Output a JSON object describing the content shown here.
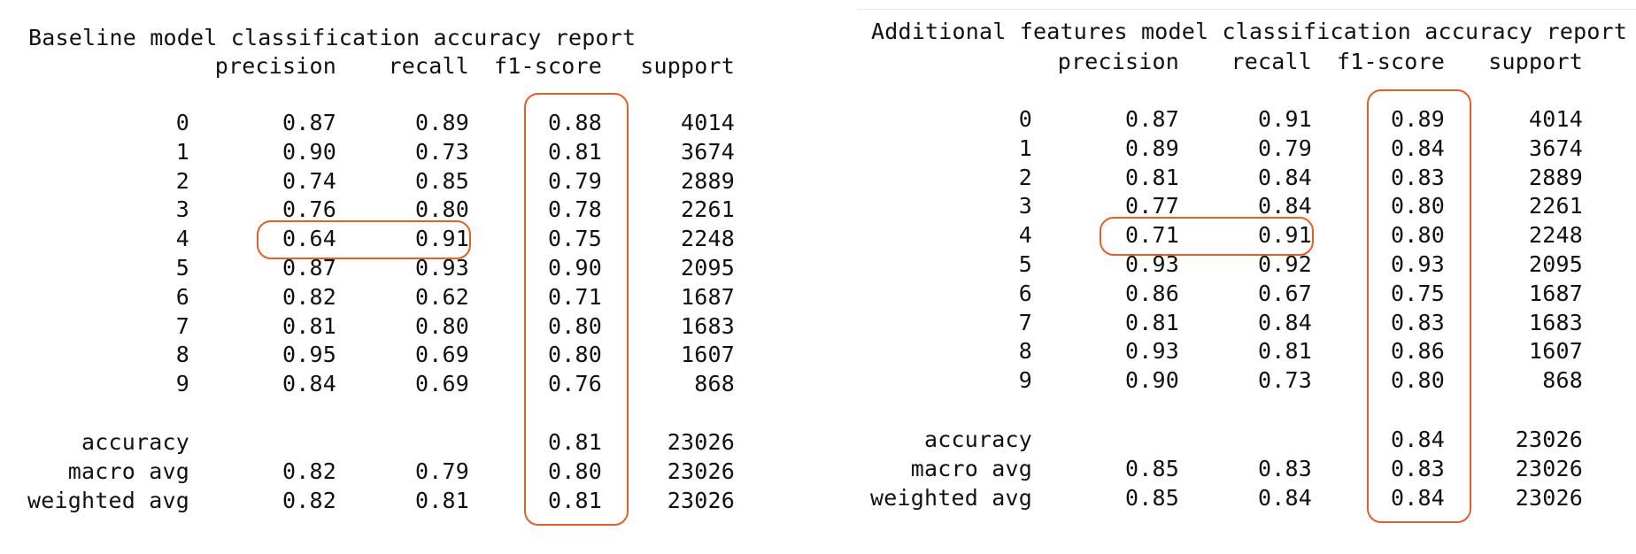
{
  "accent_color": "#e0602a",
  "reports": [
    {
      "title": "Baseline model classification accuracy report",
      "headers": [
        "precision",
        "recall",
        "f1-score",
        "support"
      ],
      "rows": [
        {
          "label": "0",
          "precision": "0.87",
          "recall": "0.89",
          "f1": "0.88",
          "support": "4014"
        },
        {
          "label": "1",
          "precision": "0.90",
          "recall": "0.73",
          "f1": "0.81",
          "support": "3674"
        },
        {
          "label": "2",
          "precision": "0.74",
          "recall": "0.85",
          "f1": "0.79",
          "support": "2889"
        },
        {
          "label": "3",
          "precision": "0.76",
          "recall": "0.80",
          "f1": "0.78",
          "support": "2261"
        },
        {
          "label": "4",
          "precision": "0.64",
          "recall": "0.91",
          "f1": "0.75",
          "support": "2248"
        },
        {
          "label": "5",
          "precision": "0.87",
          "recall": "0.93",
          "f1": "0.90",
          "support": "2095"
        },
        {
          "label": "6",
          "precision": "0.82",
          "recall": "0.62",
          "f1": "0.71",
          "support": "1687"
        },
        {
          "label": "7",
          "precision": "0.81",
          "recall": "0.80",
          "f1": "0.80",
          "support": "1683"
        },
        {
          "label": "8",
          "precision": "0.95",
          "recall": "0.69",
          "f1": "0.80",
          "support": "1607"
        },
        {
          "label": "9",
          "precision": "0.84",
          "recall": "0.69",
          "f1": "0.76",
          "support": "868"
        }
      ],
      "summary": [
        {
          "label": "accuracy",
          "precision": "",
          "recall": "",
          "f1": "0.81",
          "support": "23026"
        },
        {
          "label": "macro avg",
          "precision": "0.82",
          "recall": "0.79",
          "f1": "0.80",
          "support": "23026"
        },
        {
          "label": "weighted avg",
          "precision": "0.82",
          "recall": "0.81",
          "f1": "0.81",
          "support": "23026"
        }
      ]
    },
    {
      "title": "Additional features model classification accuracy report",
      "headers": [
        "precision",
        "recall",
        "f1-score",
        "support"
      ],
      "rows": [
        {
          "label": "0",
          "precision": "0.87",
          "recall": "0.91",
          "f1": "0.89",
          "support": "4014"
        },
        {
          "label": "1",
          "precision": "0.89",
          "recall": "0.79",
          "f1": "0.84",
          "support": "3674"
        },
        {
          "label": "2",
          "precision": "0.81",
          "recall": "0.84",
          "f1": "0.83",
          "support": "2889"
        },
        {
          "label": "3",
          "precision": "0.77",
          "recall": "0.84",
          "f1": "0.80",
          "support": "2261"
        },
        {
          "label": "4",
          "precision": "0.71",
          "recall": "0.91",
          "f1": "0.80",
          "support": "2248"
        },
        {
          "label": "5",
          "precision": "0.93",
          "recall": "0.92",
          "f1": "0.93",
          "support": "2095"
        },
        {
          "label": "6",
          "precision": "0.86",
          "recall": "0.67",
          "f1": "0.75",
          "support": "1687"
        },
        {
          "label": "7",
          "precision": "0.81",
          "recall": "0.84",
          "f1": "0.83",
          "support": "1683"
        },
        {
          "label": "8",
          "precision": "0.93",
          "recall": "0.81",
          "f1": "0.86",
          "support": "1607"
        },
        {
          "label": "9",
          "precision": "0.90",
          "recall": "0.73",
          "f1": "0.80",
          "support": "868"
        }
      ],
      "summary": [
        {
          "label": "accuracy",
          "precision": "",
          "recall": "",
          "f1": "0.84",
          "support": "23026"
        },
        {
          "label": "macro avg",
          "precision": "0.85",
          "recall": "0.83",
          "f1": "0.83",
          "support": "23026"
        },
        {
          "label": "weighted avg",
          "precision": "0.85",
          "recall": "0.84",
          "f1": "0.84",
          "support": "23026"
        }
      ]
    }
  ]
}
